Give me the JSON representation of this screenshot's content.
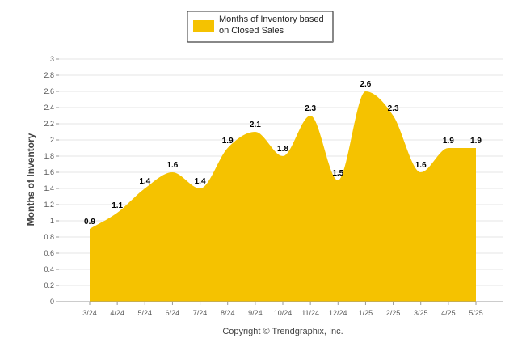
{
  "chart_data": {
    "type": "area",
    "categories": [
      "3/24",
      "4/24",
      "5/24",
      "6/24",
      "7/24",
      "8/24",
      "9/24",
      "10/24",
      "11/24",
      "12/24",
      "1/25",
      "2/25",
      "3/25",
      "4/25",
      "5/25"
    ],
    "series": [
      {
        "name": "Months of Inventory based on Closed Sales",
        "values": [
          0.9,
          1.1,
          1.4,
          1.6,
          1.4,
          1.9,
          2.1,
          1.8,
          2.3,
          1.5,
          2.6,
          2.3,
          1.6,
          1.9,
          1.9
        ],
        "color": "#F5C200"
      }
    ],
    "value_labels": [
      "0.9",
      "1.1",
      "1.4",
      "1.6",
      "1.4",
      "1.9",
      "2.1",
      "1.8",
      "2.3",
      "1.5",
      "2.6",
      "2.3",
      "1.6",
      "1.9",
      "1.9"
    ],
    "ylabel": "Months of Inventory",
    "xlabel": "",
    "ylim": [
      0,
      3
    ],
    "yticks": [
      "0",
      "0.2",
      "0.4",
      "0.6",
      "0.8",
      "1",
      "1.2",
      "1.4",
      "1.6",
      "1.8",
      "2",
      "2.2",
      "2.4",
      "2.6",
      "2.8",
      "3"
    ],
    "grid": true,
    "legend_position": "top-center",
    "legend_lines": [
      "Months of Inventory based",
      "on Closed Sales"
    ],
    "footer": "Copyright © Trendgraphix, Inc."
  }
}
